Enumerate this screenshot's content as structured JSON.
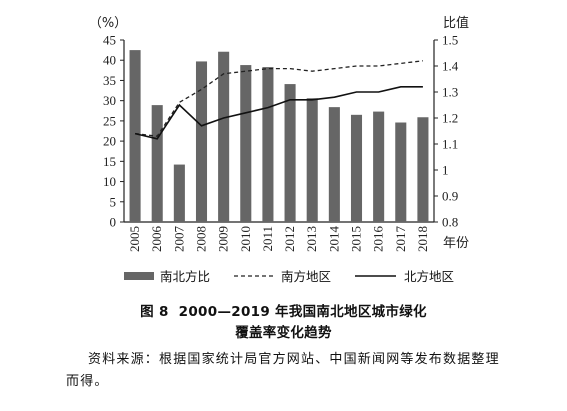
{
  "chart_data": {
    "type": "bar+line",
    "categories": [
      "2005",
      "2006",
      "2007",
      "2008",
      "2009",
      "2010",
      "2011",
      "2012",
      "2013",
      "2014",
      "2015",
      "2016",
      "2017",
      "2018"
    ],
    "series": [
      {
        "name": "南北方比",
        "kind": "bar",
        "axis": "left",
        "values": [
          42.5,
          28.9,
          14.2,
          39.7,
          42.1,
          38.8,
          38.3,
          34.1,
          30.6,
          28.4,
          26.5,
          27.3,
          24.6,
          25.9
        ]
      },
      {
        "name": "南方地区",
        "kind": "line",
        "style": "dashed",
        "axis": "right",
        "values": [
          1.14,
          1.13,
          1.26,
          1.31,
          1.37,
          1.38,
          1.39,
          1.39,
          1.38,
          1.39,
          1.4,
          1.4,
          1.41,
          1.42
        ]
      },
      {
        "name": "北方地区",
        "kind": "line",
        "style": "solid",
        "axis": "right",
        "values": [
          1.14,
          1.12,
          1.25,
          1.17,
          1.2,
          1.22,
          1.24,
          1.27,
          1.27,
          1.28,
          1.3,
          1.3,
          1.32,
          1.32
        ]
      }
    ],
    "left_axis": {
      "unit": "（%）",
      "ylim": [
        0,
        45
      ],
      "ticks": [
        "0",
        "5",
        "10",
        "15",
        "20",
        "25",
        "30",
        "35",
        "40",
        "45"
      ]
    },
    "right_axis": {
      "unit": "比值",
      "ylim": [
        0.8,
        1.5
      ],
      "ticks": [
        "0.8",
        "0.9",
        "1",
        "1.1",
        "1.2",
        "1.3",
        "1.4",
        "1.5"
      ]
    },
    "xlabel": "年份",
    "legend_position": "bottom",
    "colors": {
      "bar": "#666666",
      "south_line": "#222222",
      "north_line": "#111111",
      "axis": "#222222"
    }
  },
  "caption": {
    "figure_no": "图 8",
    "title_line1": "2000—2019 年我国南北地区城市绿化",
    "title_line2": "覆盖率变化趋势"
  },
  "source_note": "资料来源：根据国家统计局官方网站、中国新闻网等发布数据整理而得。"
}
